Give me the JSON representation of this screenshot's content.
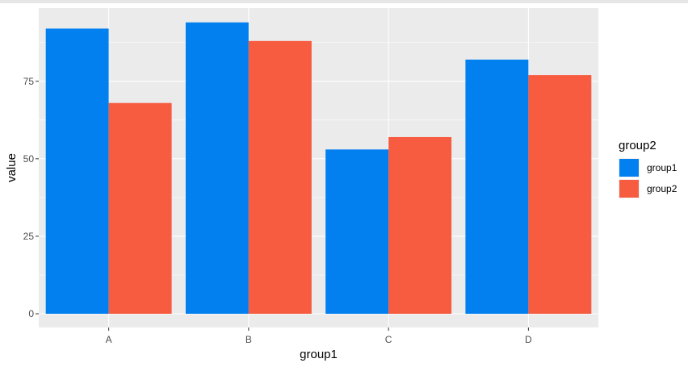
{
  "chart_data": {
    "type": "bar",
    "categories": [
      "A",
      "B",
      "C",
      "D"
    ],
    "series": [
      {
        "name": "group1",
        "values": [
          92,
          94,
          53,
          82
        ],
        "color": "#0380F0"
      },
      {
        "name": "group2",
        "values": [
          68,
          88,
          57,
          77
        ],
        "color": "#F75B40"
      }
    ],
    "xlabel": "group1",
    "ylabel": "value",
    "ylim": [
      0,
      98
    ],
    "yticks": [
      0,
      25,
      50,
      75
    ],
    "ytick_labels": [
      "0",
      "25",
      "50",
      "75"
    ],
    "grid": true,
    "panel_background": "#EBEBEB",
    "legend": {
      "title": "group2",
      "position": "right"
    }
  }
}
